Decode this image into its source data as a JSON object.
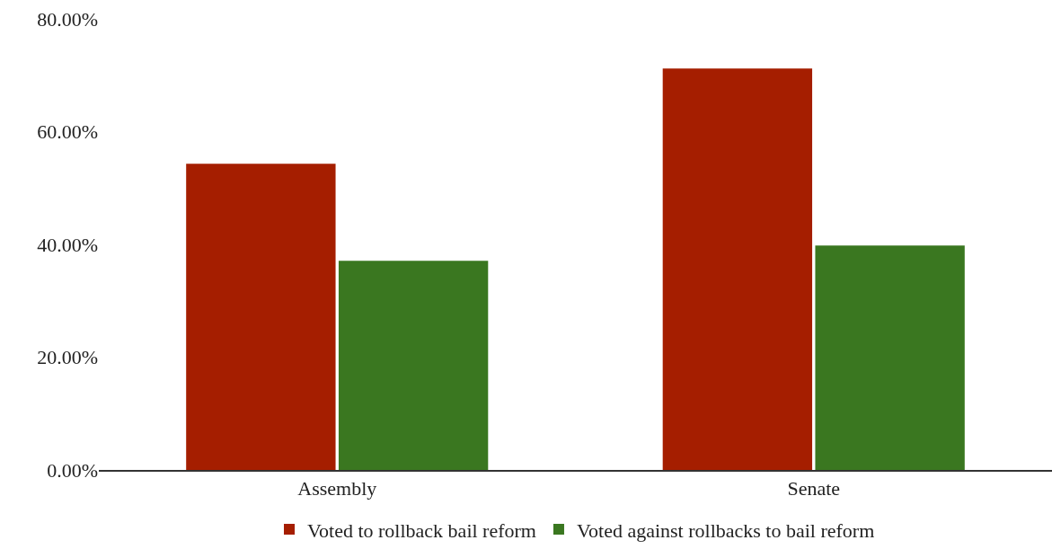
{
  "chart_data": {
    "type": "bar",
    "categories": [
      "Assembly",
      "Senate"
    ],
    "series": [
      {
        "name": "Voted to rollback bail reform",
        "color": "#a51e00",
        "values": [
          54.3,
          71.2
        ]
      },
      {
        "name": "Voted against rollbacks to bail reform",
        "color": "#3a7720",
        "values": [
          37.1,
          39.8
        ]
      }
    ],
    "ylim": [
      0,
      80
    ],
    "yticks": [
      {
        "value": 0,
        "label": "0.00%"
      },
      {
        "value": 20,
        "label": "20.00%"
      },
      {
        "value": 40,
        "label": "40.00%"
      },
      {
        "value": 60,
        "label": "60.00%"
      },
      {
        "value": 80,
        "label": "80.00%"
      }
    ],
    "legend": "bottom"
  }
}
